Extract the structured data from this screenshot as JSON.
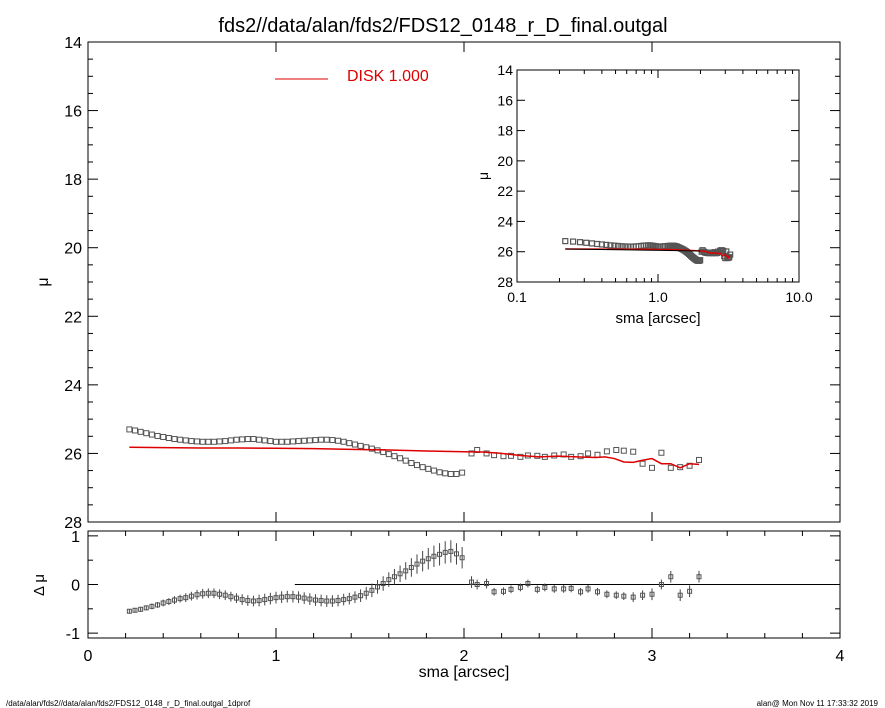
{
  "title": "fds2//data/alan/fds2/FDS12_0148_r_D_final.outgal",
  "footer_left": "/data/alan/fds2//data/alan/fds2/FDS12_0148_r_D_final.outgal_1dprof",
  "footer_right": "alan@  Mon Nov 11 17:33:32 2019",
  "colors": {
    "model": "#dd0000",
    "points": "#555555",
    "axes": "#000000"
  },
  "chart_data": [
    {
      "type": "scatter",
      "title": "fds2//data/alan/fds2/FDS12_0148_r_D_final.outgal",
      "xlabel": "",
      "ylabel": "μ",
      "xlim": [
        0,
        4
      ],
      "ylim": [
        28,
        14
      ],
      "y_inverted": true,
      "xticks": [
        0,
        1,
        2,
        3,
        4
      ],
      "yticks": [
        14,
        16,
        18,
        20,
        22,
        24,
        26,
        28
      ],
      "legend": {
        "label": "DISK  1.000",
        "placement": "top-center"
      },
      "series": [
        {
          "kind": "markers",
          "x": [
            0.22,
            0.25,
            0.28,
            0.31,
            0.34,
            0.37,
            0.4,
            0.43,
            0.46,
            0.49,
            0.52,
            0.55,
            0.58,
            0.61,
            0.64,
            0.67,
            0.7,
            0.73,
            0.76,
            0.79,
            0.82,
            0.85,
            0.88,
            0.91,
            0.94,
            0.97,
            1.0,
            1.03,
            1.06,
            1.09,
            1.12,
            1.15,
            1.18,
            1.21,
            1.24,
            1.27,
            1.3,
            1.33,
            1.36,
            1.39,
            1.42,
            1.45,
            1.48,
            1.51,
            1.54,
            1.57,
            1.6,
            1.63,
            1.66,
            1.69,
            1.72,
            1.75,
            1.78,
            1.81,
            1.84,
            1.87,
            1.9,
            1.93,
            1.96,
            1.99,
            2.04,
            2.07,
            2.12,
            2.16,
            2.21,
            2.25,
            2.3,
            2.34,
            2.39,
            2.43,
            2.48,
            2.53,
            2.57,
            2.62,
            2.66,
            2.71,
            2.76,
            2.81,
            2.85,
            2.9,
            2.95,
            3.0,
            3.05,
            3.1,
            3.15,
            3.2,
            3.25
          ],
          "y": [
            25.3,
            25.33,
            25.37,
            25.41,
            25.45,
            25.49,
            25.52,
            25.55,
            25.58,
            25.6,
            25.62,
            25.64,
            25.65,
            25.66,
            25.66,
            25.66,
            25.65,
            25.64,
            25.62,
            25.6,
            25.59,
            25.58,
            25.58,
            25.6,
            25.62,
            25.64,
            25.66,
            25.66,
            25.66,
            25.65,
            25.64,
            25.63,
            25.62,
            25.61,
            25.6,
            25.6,
            25.61,
            25.63,
            25.66,
            25.7,
            25.74,
            25.78,
            25.82,
            25.86,
            25.91,
            25.96,
            26.02,
            26.08,
            26.14,
            26.21,
            26.28,
            26.34,
            26.4,
            26.45,
            26.5,
            26.55,
            26.58,
            26.6,
            26.6,
            26.56,
            26.0,
            25.9,
            26.0,
            26.05,
            26.08,
            26.07,
            26.1,
            26.06,
            26.07,
            26.1,
            26.06,
            26.03,
            26.1,
            26.08,
            26.0,
            26.04,
            25.94,
            25.9,
            25.92,
            25.95,
            26.3,
            26.42,
            25.98,
            26.42,
            26.4,
            26.36,
            26.19
          ]
        },
        {
          "name": "DISK  1.000",
          "kind": "line",
          "x": [
            0.22,
            0.4,
            0.6,
            0.8,
            1.0,
            1.2,
            1.4,
            1.6,
            1.8,
            2.0,
            2.1,
            2.2,
            2.3,
            2.4,
            2.5,
            2.6,
            2.7,
            2.75,
            2.8,
            2.85,
            2.9,
            2.95,
            3.0,
            3.05,
            3.1,
            3.15,
            3.2,
            3.25
          ],
          "y": [
            25.82,
            25.83,
            25.84,
            25.84,
            25.85,
            25.86,
            25.88,
            25.9,
            25.93,
            25.95,
            25.96,
            26.0,
            26.06,
            26.1,
            26.08,
            26.1,
            26.12,
            26.1,
            26.15,
            26.25,
            26.26,
            26.2,
            26.15,
            26.3,
            26.3,
            26.42,
            26.3,
            26.32
          ]
        }
      ]
    },
    {
      "type": "scatter",
      "title": "",
      "xlabel": "sma [arcsec]",
      "ylabel": "μ",
      "xscale": "log",
      "xlim": [
        0.1,
        10.0
      ],
      "ylim": [
        28,
        14
      ],
      "y_inverted": true,
      "xtick_labels": [
        "0.1",
        "1.0",
        "10.0"
      ],
      "yticks": [
        14,
        16,
        18,
        20,
        22,
        24,
        26,
        28
      ],
      "series": [
        {
          "kind": "markers",
          "x": [
            0.22,
            0.25,
            0.28,
            0.31,
            0.34,
            0.37,
            0.4,
            0.43,
            0.46,
            0.49,
            0.52,
            0.55,
            0.58,
            0.61,
            0.64,
            0.67,
            0.7,
            0.73,
            0.76,
            0.79,
            0.82,
            0.85,
            0.88,
            0.91,
            0.94,
            0.97,
            1.0,
            1.03,
            1.06,
            1.09,
            1.12,
            1.15,
            1.18,
            1.21,
            1.24,
            1.27,
            1.3,
            1.33,
            1.36,
            1.39,
            1.42,
            1.45,
            1.48,
            1.51,
            1.54,
            1.57,
            1.6,
            1.63,
            1.66,
            1.69,
            1.72,
            1.75,
            1.78,
            1.81,
            1.84,
            1.87,
            1.9,
            1.93,
            1.96,
            1.99,
            2.04,
            2.07,
            2.12,
            2.16,
            2.21,
            2.25,
            2.3,
            2.34,
            2.39,
            2.43,
            2.48,
            2.53,
            2.57,
            2.62,
            2.66,
            2.71,
            2.76,
            2.81,
            2.85,
            2.9,
            2.95,
            3.0,
            3.05,
            3.1,
            3.15,
            3.2,
            3.25
          ],
          "y": [
            25.3,
            25.33,
            25.37,
            25.41,
            25.45,
            25.49,
            25.52,
            25.55,
            25.58,
            25.6,
            25.62,
            25.64,
            25.65,
            25.66,
            25.66,
            25.66,
            25.65,
            25.64,
            25.62,
            25.6,
            25.59,
            25.58,
            25.58,
            25.6,
            25.62,
            25.64,
            25.66,
            25.66,
            25.66,
            25.65,
            25.64,
            25.63,
            25.62,
            25.61,
            25.6,
            25.6,
            25.61,
            25.63,
            25.66,
            25.7,
            25.74,
            25.78,
            25.82,
            25.86,
            25.91,
            25.96,
            26.02,
            26.08,
            26.14,
            26.21,
            26.28,
            26.34,
            26.4,
            26.45,
            26.5,
            26.55,
            26.58,
            26.6,
            26.6,
            26.56,
            26.0,
            25.9,
            26.0,
            26.05,
            26.08,
            26.07,
            26.1,
            26.06,
            26.07,
            26.1,
            26.06,
            26.03,
            26.1,
            26.08,
            26.0,
            26.04,
            25.94,
            25.9,
            25.92,
            25.95,
            26.3,
            26.42,
            25.98,
            26.42,
            26.4,
            26.36,
            26.19
          ]
        },
        {
          "kind": "line",
          "x": [
            0.22,
            0.4,
            0.6,
            0.8,
            1.0,
            1.2,
            1.4,
            1.6,
            1.8,
            2.0,
            2.1,
            2.2,
            2.3,
            2.4,
            2.5,
            2.6,
            2.7,
            2.75,
            2.8,
            2.85,
            2.9,
            2.95,
            3.0,
            3.05,
            3.1,
            3.15,
            3.2,
            3.25
          ],
          "y": [
            25.82,
            25.83,
            25.84,
            25.84,
            25.85,
            25.86,
            25.88,
            25.9,
            25.93,
            25.95,
            25.96,
            26.0,
            26.06,
            26.1,
            26.08,
            26.1,
            26.12,
            26.1,
            26.15,
            26.25,
            26.26,
            26.2,
            26.15,
            26.3,
            26.3,
            26.42,
            26.3,
            26.32
          ]
        },
        {
          "kind": "line",
          "x": [
            0.22,
            2.0
          ],
          "y": [
            25.82,
            25.95
          ]
        }
      ]
    },
    {
      "type": "scatter",
      "title": "",
      "xlabel": "sma [arcsec]",
      "ylabel": "Δ μ",
      "xlim": [
        0,
        4
      ],
      "ylim": [
        -1.1,
        1.1
      ],
      "xticks": [
        0,
        1,
        2,
        3,
        4
      ],
      "yticks": [
        -1,
        0,
        1
      ],
      "reference_line": {
        "y": 0,
        "x_from": 1.1,
        "x_to": 4
      },
      "series": [
        {
          "kind": "markers_with_errorbars",
          "x": [
            0.22,
            0.25,
            0.28,
            0.31,
            0.34,
            0.37,
            0.4,
            0.43,
            0.46,
            0.49,
            0.52,
            0.55,
            0.58,
            0.61,
            0.64,
            0.67,
            0.7,
            0.73,
            0.76,
            0.79,
            0.82,
            0.85,
            0.88,
            0.91,
            0.94,
            0.97,
            1.0,
            1.03,
            1.06,
            1.09,
            1.12,
            1.15,
            1.18,
            1.21,
            1.24,
            1.27,
            1.3,
            1.33,
            1.36,
            1.39,
            1.42,
            1.45,
            1.48,
            1.51,
            1.54,
            1.57,
            1.6,
            1.63,
            1.66,
            1.69,
            1.72,
            1.75,
            1.78,
            1.81,
            1.84,
            1.87,
            1.9,
            1.93,
            1.96,
            1.99,
            2.04,
            2.07,
            2.12,
            2.16,
            2.21,
            2.25,
            2.3,
            2.34,
            2.39,
            2.43,
            2.48,
            2.53,
            2.57,
            2.62,
            2.66,
            2.71,
            2.76,
            2.81,
            2.85,
            2.9,
            2.95,
            3.0,
            3.05,
            3.1,
            3.15,
            3.2,
            3.25
          ],
          "y": [
            -0.55,
            -0.53,
            -0.51,
            -0.48,
            -0.45,
            -0.42,
            -0.38,
            -0.35,
            -0.32,
            -0.29,
            -0.27,
            -0.24,
            -0.21,
            -0.19,
            -0.18,
            -0.18,
            -0.2,
            -0.22,
            -0.25,
            -0.28,
            -0.31,
            -0.33,
            -0.34,
            -0.33,
            -0.31,
            -0.29,
            -0.27,
            -0.26,
            -0.25,
            -0.25,
            -0.26,
            -0.28,
            -0.3,
            -0.32,
            -0.33,
            -0.34,
            -0.34,
            -0.33,
            -0.31,
            -0.29,
            -0.26,
            -0.23,
            -0.18,
            -0.12,
            -0.05,
            0.02,
            0.1,
            0.16,
            0.22,
            0.28,
            0.35,
            0.42,
            0.48,
            0.53,
            0.58,
            0.62,
            0.66,
            0.68,
            0.63,
            0.55,
            0.05,
            0.0,
            0.02,
            -0.15,
            -0.14,
            -0.1,
            -0.06,
            0.02,
            -0.1,
            -0.06,
            -0.09,
            -0.09,
            -0.08,
            -0.15,
            -0.09,
            -0.15,
            -0.2,
            -0.22,
            -0.24,
            -0.26,
            -0.22,
            -0.2,
            0.0,
            0.16,
            -0.22,
            -0.14,
            0.16
          ],
          "err": [
            0.04,
            0.04,
            0.05,
            0.05,
            0.06,
            0.06,
            0.07,
            0.07,
            0.08,
            0.08,
            0.09,
            0.09,
            0.1,
            0.1,
            0.1,
            0.1,
            0.1,
            0.1,
            0.1,
            0.1,
            0.11,
            0.11,
            0.11,
            0.12,
            0.12,
            0.12,
            0.12,
            0.12,
            0.12,
            0.12,
            0.12,
            0.12,
            0.12,
            0.12,
            0.12,
            0.12,
            0.12,
            0.12,
            0.12,
            0.12,
            0.12,
            0.13,
            0.13,
            0.14,
            0.14,
            0.15,
            0.15,
            0.16,
            0.17,
            0.18,
            0.19,
            0.2,
            0.21,
            0.22,
            0.22,
            0.23,
            0.23,
            0.23,
            0.22,
            0.22,
            0.12,
            0.1,
            0.1,
            0.08,
            0.08,
            0.08,
            0.08,
            0.08,
            0.08,
            0.08,
            0.08,
            0.08,
            0.08,
            0.08,
            0.08,
            0.08,
            0.08,
            0.08,
            0.08,
            0.1,
            0.1,
            0.12,
            0.1,
            0.12,
            0.12,
            0.12,
            0.12
          ]
        }
      ]
    }
  ]
}
